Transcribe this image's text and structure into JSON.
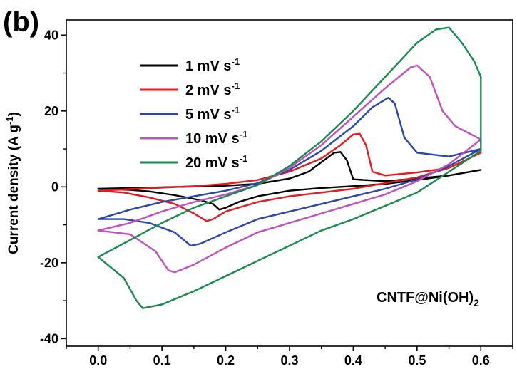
{
  "panel_label": "(b)",
  "chart_data": {
    "type": "line",
    "title": "",
    "xlabel": "",
    "ylabel_main": "Current density (A g",
    "ylabel_sup": "-1",
    "ylabel_end": ")",
    "annotation_main": "CNTF@Ni(OH)",
    "annotation_sub": "2",
    "xlim": [
      -0.05,
      0.65
    ],
    "ylim": [
      -42,
      44
    ],
    "xticks": [
      0.0,
      0.1,
      0.2,
      0.3,
      0.4,
      0.5,
      0.6
    ],
    "xtick_labels": [
      "0.0",
      "0.1",
      "0.2",
      "0.3",
      "0.4",
      "0.5",
      "0.6"
    ],
    "yticks": [
      -40,
      -20,
      0,
      20,
      40
    ],
    "ytick_labels": [
      "-40",
      "-20",
      "0",
      "20",
      "40"
    ],
    "grid": false,
    "legend_position": "top-left",
    "series": [
      {
        "name": "1 mV s",
        "name_sup": "-1",
        "color": "#000000",
        "x": [
          0.0,
          0.05,
          0.1,
          0.15,
          0.2,
          0.25,
          0.3,
          0.33,
          0.35,
          0.37,
          0.38,
          0.39,
          0.4,
          0.45,
          0.5,
          0.55,
          0.6,
          0.6,
          0.55,
          0.5,
          0.45,
          0.4,
          0.35,
          0.3,
          0.25,
          0.22,
          0.2,
          0.19,
          0.18,
          0.16,
          0.12,
          0.08,
          0.05,
          0.0
        ],
        "y": [
          -0.5,
          -0.3,
          -0.1,
          0.1,
          0.3,
          0.8,
          2.2,
          4.0,
          6.5,
          9.0,
          9.2,
          7.0,
          2.0,
          1.5,
          2.2,
          3.0,
          4.5,
          4.5,
          3.0,
          1.8,
          0.8,
          0.2,
          -0.3,
          -1.0,
          -2.5,
          -4.0,
          -5.5,
          -6.0,
          -4.5,
          -3.5,
          -2.2,
          -1.2,
          -0.8,
          -0.5
        ]
      },
      {
        "name": "2 mV s",
        "name_sup": "-1",
        "color": "#e41a1c",
        "x": [
          0.0,
          0.05,
          0.1,
          0.15,
          0.2,
          0.25,
          0.3,
          0.35,
          0.38,
          0.4,
          0.41,
          0.42,
          0.43,
          0.45,
          0.5,
          0.55,
          0.6,
          0.6,
          0.55,
          0.5,
          0.45,
          0.4,
          0.35,
          0.3,
          0.25,
          0.2,
          0.18,
          0.17,
          0.15,
          0.12,
          0.08,
          0.04,
          0.0
        ],
        "y": [
          -1.0,
          -0.6,
          -0.2,
          0.2,
          0.8,
          1.8,
          4.0,
          7.5,
          11.0,
          13.8,
          14.0,
          11.0,
          4.0,
          3.0,
          3.8,
          5.0,
          9.0,
          9.0,
          5.0,
          2.5,
          1.0,
          -0.5,
          -1.5,
          -2.5,
          -4.0,
          -6.5,
          -8.5,
          -9.0,
          -7.0,
          -4.5,
          -2.8,
          -1.5,
          -1.0
        ]
      },
      {
        "name": "5 mV s",
        "name_sup": "-1",
        "color": "#2946a8",
        "x": [
          0.0,
          0.05,
          0.1,
          0.15,
          0.2,
          0.25,
          0.3,
          0.35,
          0.4,
          0.43,
          0.455,
          0.465,
          0.48,
          0.5,
          0.55,
          0.6,
          0.6,
          0.55,
          0.5,
          0.45,
          0.4,
          0.35,
          0.3,
          0.25,
          0.2,
          0.16,
          0.145,
          0.12,
          0.08,
          0.04,
          0.0
        ],
        "y": [
          -8.5,
          -6.0,
          -4.0,
          -2.5,
          -1.0,
          1.0,
          4.5,
          9.5,
          16.0,
          21.0,
          23.5,
          22.0,
          13.0,
          9.0,
          8.0,
          10.0,
          10.0,
          5.5,
          2.0,
          -0.5,
          -2.5,
          -4.5,
          -6.5,
          -8.5,
          -12.0,
          -15.0,
          -15.5,
          -12.0,
          -9.5,
          -8.5,
          -8.5
        ]
      },
      {
        "name": "10 mV s",
        "name_sup": "-1",
        "color": "#c04fc0",
        "x": [
          0.0,
          0.05,
          0.1,
          0.15,
          0.2,
          0.25,
          0.3,
          0.35,
          0.4,
          0.45,
          0.49,
          0.5,
          0.52,
          0.54,
          0.56,
          0.6,
          0.6,
          0.55,
          0.5,
          0.45,
          0.4,
          0.35,
          0.3,
          0.25,
          0.2,
          0.15,
          0.12,
          0.11,
          0.09,
          0.05,
          0.0
        ],
        "y": [
          -11.5,
          -9.5,
          -6.5,
          -4.0,
          -2.0,
          0.5,
          5.0,
          11.0,
          18.5,
          26.0,
          31.5,
          32.0,
          29.0,
          20.0,
          16.0,
          12.5,
          12.5,
          6.0,
          1.5,
          -2.0,
          -4.5,
          -7.0,
          -9.5,
          -12.0,
          -16.0,
          -20.5,
          -22.5,
          -22.0,
          -17.0,
          -12.5,
          -11.5
        ]
      },
      {
        "name": "20 mV s",
        "name_sup": "-1",
        "color": "#1a8a4a",
        "x": [
          0.0,
          0.05,
          0.1,
          0.15,
          0.2,
          0.25,
          0.3,
          0.35,
          0.4,
          0.45,
          0.5,
          0.53,
          0.55,
          0.57,
          0.59,
          0.6,
          0.6,
          0.55,
          0.5,
          0.45,
          0.4,
          0.35,
          0.3,
          0.25,
          0.2,
          0.15,
          0.1,
          0.07,
          0.06,
          0.04,
          0.0
        ],
        "y": [
          -18.5,
          -14.0,
          -9.5,
          -5.5,
          -2.5,
          0.5,
          5.5,
          12.0,
          20.0,
          29.0,
          38.0,
          41.5,
          42.0,
          38.0,
          33.0,
          29.0,
          9.5,
          4.0,
          -1.5,
          -5.0,
          -8.5,
          -11.5,
          -15.5,
          -19.5,
          -23.5,
          -27.5,
          -31.0,
          -32.0,
          -30.0,
          -24.0,
          -18.5
        ]
      }
    ]
  }
}
